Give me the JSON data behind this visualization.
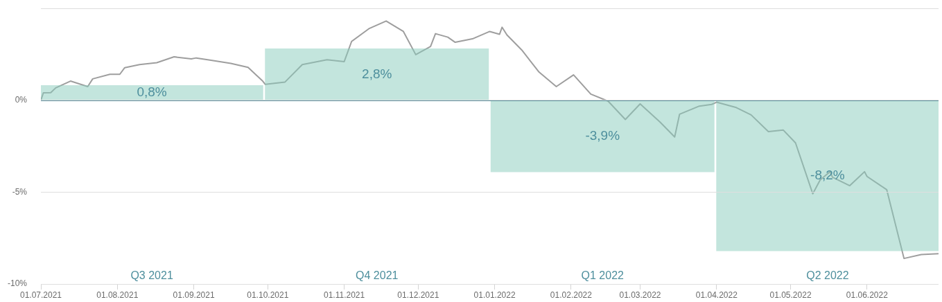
{
  "chart_data": {
    "type": "bar",
    "series": [
      {
        "color": "#c3e5dd",
        "x": [
          "2021-08-15",
          "2021-11-14",
          "2022-02-14",
          "2022-05-16"
        ],
        "values": [
          0.8,
          2.8,
          -3.9,
          -8.2
        ],
        "value_labels": [
          "0,8%",
          "2,8%",
          "-3,9%",
          "-8,2%"
        ]
      },
      {
        "type": "line",
        "color": "#9e9e9e",
        "x": [
          "2021-07-01",
          "2021-07-02",
          "2021-07-05",
          "2021-07-07",
          "2021-07-13",
          "2021-07-20",
          "2021-07-22",
          "2021-07-29",
          "2021-08-02",
          "2021-08-04",
          "2021-08-10",
          "2021-08-17",
          "2021-08-24",
          "2021-08-31",
          "2021-09-02",
          "2021-09-08",
          "2021-09-16",
          "2021-09-23",
          "2021-09-29",
          "2021-09-30",
          "2021-10-08",
          "2021-10-15",
          "2021-10-25",
          "2021-11-01",
          "2021-11-04",
          "2021-11-11",
          "2021-11-18",
          "2021-11-25",
          "2021-11-30",
          "2021-12-06",
          "2021-12-08",
          "2021-12-13",
          "2021-12-16",
          "2021-12-23",
          "2021-12-30",
          "2022-01-03",
          "2022-01-04",
          "2022-01-06",
          "2022-01-12",
          "2022-01-19",
          "2022-01-26",
          "2022-02-02",
          "2022-02-09",
          "2022-02-16",
          "2022-02-23",
          "2022-03-01",
          "2022-03-09",
          "2022-03-15",
          "2022-03-17",
          "2022-03-25",
          "2022-03-30",
          "2022-04-01",
          "2022-04-09",
          "2022-04-15",
          "2022-04-22",
          "2022-04-28",
          "2022-05-03",
          "2022-05-10",
          "2022-05-13",
          "2022-05-17",
          "2022-05-18",
          "2022-05-25",
          "2022-05-31",
          "2022-06-01",
          "2022-06-09",
          "2022-06-16",
          "2022-06-23",
          "2022-06-30"
        ],
        "values": [
          0,
          0.4,
          0.41,
          0.67,
          1.04,
          0.74,
          1.16,
          1.41,
          1.41,
          1.77,
          1.94,
          2.04,
          2.36,
          2.25,
          2.3,
          2.17,
          2.0,
          1.79,
          1.03,
          0.86,
          0.99,
          1.94,
          2.2,
          2.1,
          3.2,
          3.89,
          4.31,
          3.74,
          2.48,
          2.92,
          3.62,
          3.43,
          3.15,
          3.34,
          3.74,
          3.59,
          3.97,
          3.55,
          2.73,
          1.53,
          0.74,
          1.38,
          0.33,
          -0.05,
          -1.05,
          -0.2,
          -1.18,
          -2.0,
          -0.76,
          -0.32,
          -0.23,
          -0.11,
          -0.4,
          -0.8,
          -1.71,
          -1.62,
          -2.32,
          -5.09,
          -4.34,
          -3.89,
          -4.19,
          -4.65,
          -3.89,
          -4.15,
          -4.87,
          -8.61,
          -8.4,
          -8.35
        ]
      }
    ],
    "annotations": [
      "Q3 2021",
      "Q4 2021",
      "Q1 2022",
      "Q2 2022"
    ],
    "ref_lines": [
      {
        "axis": "y",
        "value": 0,
        "color": "#5a8f9b"
      }
    ],
    "xlim": [
      "2021-07-01",
      "2022-06-30"
    ],
    "xticks": [
      {
        "value": "2021-07-01",
        "label": "01.07.2021"
      },
      {
        "value": "2021-08-01",
        "label": "01.08.2021"
      },
      {
        "value": "2021-09-01",
        "label": "01.09.2021"
      },
      {
        "value": "2021-10-01",
        "label": "01.10.2021"
      },
      {
        "value": "2021-11-01",
        "label": "01.11.2021"
      },
      {
        "value": "2021-12-01",
        "label": "01.12.2021"
      },
      {
        "value": "2022-01-01",
        "label": "01.01.2022"
      },
      {
        "value": "2022-02-01",
        "label": "01.02.2022"
      },
      {
        "value": "2022-03-01",
        "label": "01.03.2022"
      },
      {
        "value": "2022-04-01",
        "label": "01.04.2022"
      },
      {
        "value": "2022-05-01",
        "label": "01.05.2022"
      },
      {
        "value": "2022-06-01",
        "label": "01.06.2022"
      }
    ],
    "ylim": [
      -10,
      5
    ],
    "yticks": [
      {
        "value": 5,
        "label": null
      },
      {
        "value": 0,
        "label": "0%"
      },
      {
        "value": -5,
        "label": "-5%"
      },
      {
        "value": -10,
        "label": "-10%"
      }
    ],
    "grid": "y",
    "marker": "none",
    "line_style": "solid"
  }
}
